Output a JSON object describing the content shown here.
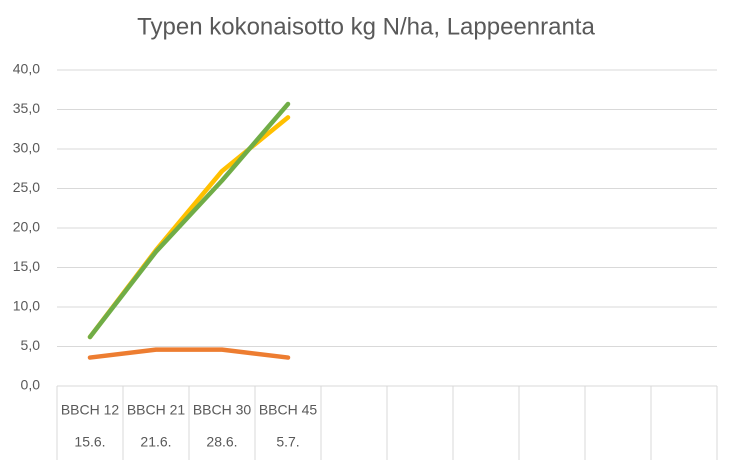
{
  "chart_data": {
    "type": "line",
    "title": "Typen kokonaisotto kg N/ha, Lappeenranta",
    "categories": [
      "BBCH 12",
      "BBCH 21",
      "BBCH 30",
      "BBCH 45",
      null,
      null,
      null,
      null,
      null,
      null
    ],
    "category_dates": [
      "15.6.",
      "21.6.",
      "28.6.",
      "5.7.",
      null,
      null,
      null,
      null,
      null,
      null
    ],
    "series": [
      {
        "color": "#ed7d31",
        "values": [
          3.6,
          4.6,
          4.6,
          3.6,
          null,
          null,
          null,
          null,
          null,
          null
        ]
      },
      {
        "color": "#ffc000",
        "values": [
          6.2,
          17.2,
          27.2,
          34.0,
          null,
          null,
          null,
          null,
          null,
          null
        ]
      },
      {
        "color": "#70ad47",
        "values": [
          6.2,
          17.0,
          26.0,
          35.7,
          null,
          null,
          null,
          null,
          null,
          null
        ]
      }
    ],
    "ylim": [
      0,
      40
    ],
    "yticks": [
      {
        "value": 0,
        "label": "0,0"
      },
      {
        "value": 5,
        "label": "5,0"
      },
      {
        "value": 10,
        "label": "10,0"
      },
      {
        "value": 15,
        "label": "15,0"
      },
      {
        "value": 20,
        "label": "20,0"
      },
      {
        "value": 25,
        "label": "25,0"
      },
      {
        "value": 30,
        "label": "30,0"
      },
      {
        "value": 35,
        "label": "35,0"
      },
      {
        "value": 40,
        "label": "40,0"
      }
    ],
    "grid": true
  }
}
